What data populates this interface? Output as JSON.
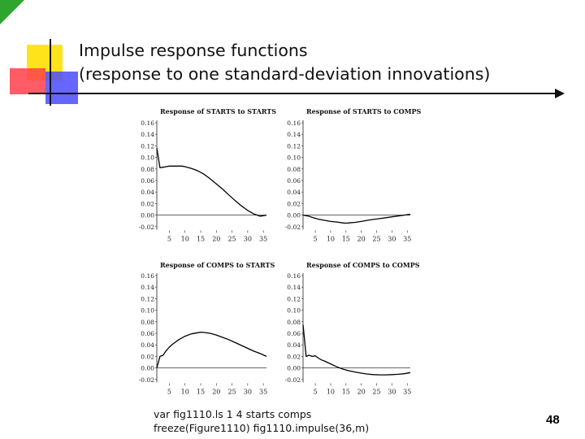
{
  "slide": {
    "title_line1": "Impulse response functions",
    "title_line2": "(response to one standard-deviation innovations)",
    "code_line1": "var fig1110.ls 1 4 starts comps",
    "code_line2": "freeze(Figure1110) fig1110.impulse(36,m)",
    "page_number": "48"
  },
  "chart_data": [
    {
      "type": "line",
      "title": "Response of STARTS to STARTS",
      "x": [
        1,
        2,
        3,
        4,
        5,
        6,
        7,
        8,
        9,
        10,
        12,
        14,
        16,
        18,
        20,
        22,
        24,
        26,
        28,
        30,
        32,
        34,
        35,
        36
      ],
      "series": [
        {
          "values": [
            0.116,
            0.082,
            0.083,
            0.084,
            0.085,
            0.085,
            0.085,
            0.085,
            0.085,
            0.084,
            0.081,
            0.077,
            0.071,
            0.063,
            0.054,
            0.045,
            0.035,
            0.025,
            0.016,
            0.008,
            0.002,
            -0.002,
            -0.001,
            0.0
          ]
        }
      ],
      "xticks": [
        5,
        10,
        15,
        20,
        25,
        30,
        35
      ],
      "yticks": [
        "0.16",
        "0.14",
        "0.12",
        "0.10",
        "0.08",
        "0.06",
        "0.04",
        "0.02",
        "0.00",
        "-0.02"
      ],
      "ylim": [
        -0.025,
        0.165
      ],
      "xlim": [
        1,
        36
      ],
      "zero_line": true
    },
    {
      "type": "line",
      "title": "Response of STARTS to COMPS",
      "x": [
        1,
        2,
        3,
        4,
        6,
        8,
        10,
        12,
        14,
        15,
        16,
        18,
        20,
        22,
        24,
        26,
        28,
        30,
        32,
        34,
        36
      ],
      "series": [
        {
          "values": [
            0.0,
            -0.001,
            -0.002,
            -0.004,
            -0.007,
            -0.009,
            -0.011,
            -0.012,
            -0.0135,
            -0.014,
            -0.0135,
            -0.0125,
            -0.011,
            -0.009,
            -0.0075,
            -0.006,
            -0.0045,
            -0.003,
            -0.0015,
            0.0,
            0.0015
          ]
        }
      ],
      "xticks": [
        5,
        10,
        15,
        20,
        25,
        30,
        35
      ],
      "yticks": [
        "0.16",
        "0.14",
        "0.12",
        "0.10",
        "0.08",
        "0.06",
        "0.04",
        "0.02",
        "0.00",
        "-0.02"
      ],
      "ylim": [
        -0.025,
        0.165
      ],
      "xlim": [
        1,
        36
      ],
      "zero_line": true
    },
    {
      "type": "line",
      "title": "Response of COMPS to STARTS",
      "x": [
        1,
        2,
        3,
        4,
        5,
        6,
        8,
        10,
        12,
        14,
        15,
        16,
        18,
        20,
        22,
        24,
        26,
        28,
        30,
        32,
        34,
        36
      ],
      "series": [
        {
          "values": [
            0.0,
            0.02,
            0.022,
            0.03,
            0.036,
            0.041,
            0.049,
            0.055,
            0.059,
            0.061,
            0.062,
            0.0615,
            0.06,
            0.057,
            0.053,
            0.049,
            0.044,
            0.039,
            0.034,
            0.029,
            0.025,
            0.02
          ]
        }
      ],
      "xticks": [
        5,
        10,
        15,
        20,
        25,
        30,
        35
      ],
      "yticks": [
        "0.16",
        "0.14",
        "0.12",
        "0.10",
        "0.08",
        "0.06",
        "0.04",
        "0.02",
        "0.00",
        "-0.02"
      ],
      "ylim": [
        -0.025,
        0.165
      ],
      "xlim": [
        1,
        36
      ],
      "zero_line": true
    },
    {
      "type": "line",
      "title": "Response of COMPS to COMPS",
      "x": [
        1,
        2,
        3,
        4,
        5,
        6,
        7,
        8,
        10,
        12,
        14,
        16,
        18,
        20,
        22,
        24,
        26,
        28,
        30,
        32,
        34,
        36
      ],
      "series": [
        {
          "values": [
            0.075,
            0.02,
            0.022,
            0.02,
            0.021,
            0.017,
            0.014,
            0.012,
            0.007,
            0.002,
            -0.002,
            -0.005,
            -0.007,
            -0.009,
            -0.0105,
            -0.0115,
            -0.012,
            -0.012,
            -0.0115,
            -0.011,
            -0.01,
            -0.008
          ]
        }
      ],
      "xticks": [
        5,
        10,
        15,
        20,
        25,
        30,
        35
      ],
      "yticks": [
        "0.16",
        "0.14",
        "0.12",
        "0.10",
        "0.08",
        "0.06",
        "0.04",
        "0.02",
        "0.00",
        "-0.02"
      ],
      "ylim": [
        -0.025,
        0.165
      ],
      "xlim": [
        1,
        36
      ],
      "zero_line": true
    }
  ]
}
